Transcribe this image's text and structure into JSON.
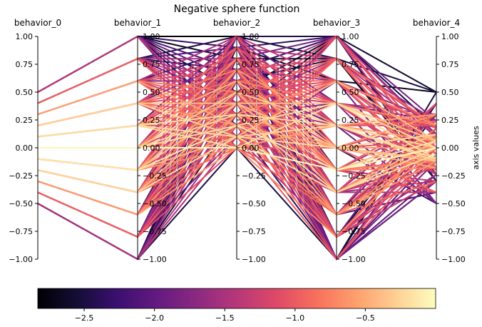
{
  "chart_data": {
    "type": "parallel_coordinates",
    "title": "Negative sphere function",
    "axes": [
      "behavior_0",
      "behavior_1",
      "behavior_2",
      "behavior_3",
      "behavior_4"
    ],
    "ylim": [
      -1.0,
      1.0
    ],
    "y_ticks": [
      "−1.00",
      "−0.75",
      "−0.50",
      "−0.25",
      "0.00",
      "0.25",
      "0.50",
      "0.75",
      "1.00"
    ],
    "y_tick_values": [
      -1.0,
      -0.75,
      -0.5,
      -0.25,
      0.0,
      0.25,
      0.5,
      0.75,
      1.0
    ],
    "right_axis_label": "axis values",
    "colorbar": {
      "colormap": "magma",
      "range": [
        -2.83,
        0.0
      ],
      "ticks": [
        "−2.5",
        "−2.0",
        "−1.5",
        "−1.0",
        "−0.5"
      ],
      "tick_values": [
        -2.5,
        -2.0,
        -1.5,
        -1.0,
        -0.5
      ]
    },
    "series_pattern": {
      "behavior_0": "grid over [-0.5, 0.5]",
      "behavior_1": "grid over [-1, 1]",
      "behavior_2": "grid over [0, 1]",
      "behavior_3": "grid over [-1, 1]",
      "behavior_4": "grid over [-0.5, 0.5]",
      "color": "negative sum of squares"
    },
    "grid": false
  }
}
